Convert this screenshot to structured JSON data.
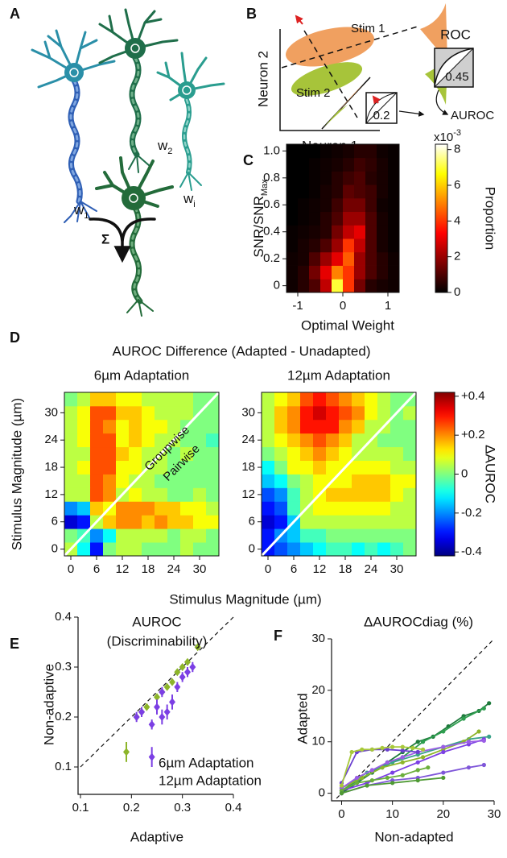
{
  "panel_labels": [
    "A",
    "B",
    "C",
    "D",
    "E",
    "F"
  ],
  "panel_A": {
    "weights": [
      {
        "text": "w",
        "sub": "1"
      },
      {
        "text": "w",
        "sub": "2"
      },
      {
        "text": "w",
        "sub": "i"
      }
    ],
    "sum": "Σ"
  },
  "panel_B": {
    "stim_1": "Stim 1",
    "stim_2": "Stim 2",
    "ylabel": "Neuron 2",
    "xlabel": "Neuron 1",
    "roc_title": "ROC",
    "roc_value": 0.45,
    "projection_value": 0.2,
    "auroc": "AUROC"
  },
  "panel_D": {
    "title": "AUROC Difference (Adapted - Unadapted)",
    "xlabel": "Stimulus Magnitude (µm)",
    "groupwise": "Groupwise",
    "pairwise": "Pairwise"
  },
  "chart_data": [
    {
      "type": "heatmap",
      "ylabel": {
        "text": "SNR/SNR",
        "sub": "Max"
      },
      "xlabel": "Optimal Weight",
      "x": [
        -1.125,
        -0.875,
        -0.625,
        -0.375,
        -0.125,
        0.125,
        0.375,
        0.625,
        0.875,
        1.125
      ],
      "y": [
        0,
        0.1,
        0.2,
        0.3,
        0.4,
        0.5,
        0.6,
        0.7,
        0.8,
        0.9,
        1
      ],
      "values": [
        [
          0.2,
          0.5,
          1,
          2.5,
          7,
          4,
          1.5,
          0.5,
          0.3,
          0.2
        ],
        [
          0.2,
          0.5,
          1.5,
          3,
          5,
          4,
          2,
          1,
          0.5,
          0.2
        ],
        [
          0.2,
          0.3,
          1,
          2,
          3,
          4.5,
          2,
          1,
          0.5,
          0.2
        ],
        [
          0.1,
          0.3,
          0.5,
          1,
          2,
          4,
          2.5,
          1,
          0.3,
          0.1
        ],
        [
          0.1,
          0.2,
          0.3,
          0.5,
          1.5,
          2.5,
          3,
          1,
          0.3,
          0.1
        ],
        [
          0,
          0.1,
          0.2,
          0.5,
          1,
          2,
          2,
          1,
          0.3,
          0.1
        ],
        [
          0,
          0.1,
          0.2,
          0.3,
          0.8,
          1.5,
          1.5,
          0.8,
          0.2,
          0.1
        ],
        [
          0,
          0,
          0.1,
          0.3,
          0.5,
          1.2,
          1,
          0.8,
          0.3,
          0.1
        ],
        [
          0,
          0,
          0.1,
          0.2,
          0.5,
          0.8,
          1,
          0.5,
          0.3,
          0.1
        ],
        [
          0,
          0,
          0.1,
          0.2,
          0.3,
          0.5,
          0.8,
          0.6,
          0.3,
          0.1
        ],
        [
          0,
          0,
          0,
          0.1,
          0.2,
          0.3,
          0.5,
          0.5,
          0.2,
          0.1
        ]
      ],
      "xlim": [
        -1.25,
        1.25
      ],
      "ylim": [
        -0.05,
        1.05
      ],
      "xticks": [
        -1,
        0,
        1
      ],
      "yticks": [
        0,
        0.2,
        0.4,
        0.6,
        0.8,
        {
          "value": 1,
          "label": "1.0"
        }
      ],
      "colormap": "hot",
      "clim": [
        0,
        8.3
      ],
      "cticks": [
        0,
        2,
        4,
        6,
        8
      ],
      "colorbar_label": "Proportion",
      "colorbar_scale": {
        "text": "x10",
        "sup": "-3"
      }
    },
    {
      "type": "heatmap",
      "title": "6µm Adaptation",
      "ylabel": "Stimulus Magnitude (µm)",
      "x": [
        0,
        3,
        6,
        9,
        12,
        15,
        18,
        21,
        24,
        27,
        30,
        33
      ],
      "y": [
        0,
        3,
        6,
        9,
        12,
        15,
        18,
        21,
        24,
        27,
        30,
        33
      ],
      "values": [
        [
          0.05,
          -0.1,
          -0.3,
          0,
          0.05,
          0.05,
          0,
          0,
          0,
          0.05,
          0,
          0
        ],
        [
          0,
          -0.05,
          -0.2,
          -0.1,
          0.05,
          0.05,
          0.05,
          0.05,
          0,
          0.05,
          0.05,
          0
        ],
        [
          -0.35,
          -0.3,
          0.05,
          0.15,
          0.2,
          0.2,
          0.15,
          0.2,
          0.15,
          0.15,
          0.1,
          0.1
        ],
        [
          -0.2,
          -0.15,
          0.15,
          0.1,
          0.2,
          0.2,
          0.2,
          0.15,
          0.15,
          0.1,
          0.1,
          0.05
        ],
        [
          0.05,
          0.05,
          0.25,
          0.2,
          0.05,
          0.1,
          0.05,
          0.05,
          0,
          0,
          0.05,
          0
        ],
        [
          0.05,
          0.05,
          0.25,
          0.2,
          0.1,
          0.05,
          0.05,
          0,
          0,
          0,
          0,
          0
        ],
        [
          0.05,
          0.1,
          0.25,
          0.25,
          0.1,
          0.1,
          0.05,
          0.05,
          0,
          0,
          0,
          0
        ],
        [
          0.05,
          0.05,
          0.25,
          0.25,
          0.15,
          0.1,
          0.05,
          0.05,
          0,
          0.05,
          0,
          0
        ],
        [
          0.05,
          0.1,
          0.25,
          0.25,
          0.1,
          0.15,
          0.1,
          0.05,
          0.05,
          0,
          0,
          -0.05
        ],
        [
          0.05,
          0.1,
          0.25,
          0.2,
          0.1,
          0.15,
          0.1,
          0.1,
          0.05,
          0,
          0,
          0
        ],
        [
          0.05,
          0.1,
          0.25,
          0.25,
          0.15,
          0.15,
          0.1,
          0.05,
          0.05,
          0.05,
          0,
          0
        ],
        [
          0,
          0.05,
          0.15,
          0.15,
          0.1,
          0.1,
          0.05,
          0.05,
          0.05,
          0.05,
          0,
          0
        ]
      ],
      "xlim": [
        -1.5,
        34.5
      ],
      "ylim": [
        -1.5,
        34.5
      ],
      "xticks": [
        0,
        6,
        12,
        18,
        24,
        30
      ],
      "yticks": [
        0,
        6,
        12,
        18,
        24,
        30
      ],
      "colormap": "jet",
      "clim": [
        -0.42,
        0.42
      ],
      "diagonal": true
    },
    {
      "type": "heatmap",
      "title": "12µm Adaptation",
      "x": [
        0,
        3,
        6,
        9,
        12,
        15,
        18,
        21,
        24,
        27,
        30,
        33
      ],
      "y": [
        0,
        3,
        6,
        9,
        12,
        15,
        18,
        21,
        24,
        27,
        30,
        33
      ],
      "values": [
        [
          -0.3,
          -0.25,
          -0.2,
          -0.15,
          -0.1,
          -0.05,
          -0.05,
          -0.1,
          -0.05,
          -0.1,
          -0.05,
          0
        ],
        [
          -0.3,
          -0.2,
          -0.15,
          -0.05,
          -0.05,
          0,
          0,
          0,
          0,
          0,
          0,
          0
        ],
        [
          -0.35,
          -0.3,
          -0.15,
          0.05,
          0.05,
          0.05,
          0.05,
          0.05,
          0.05,
          0.05,
          0.05,
          0.05
        ],
        [
          -0.3,
          -0.25,
          -0.05,
          0.05,
          0.1,
          0.1,
          0.1,
          0.1,
          0.1,
          0.1,
          0.05,
          0.05
        ],
        [
          -0.25,
          -0.2,
          -0.05,
          0.05,
          0.1,
          0.15,
          0.15,
          0.15,
          0.15,
          0.15,
          0.1,
          0.05
        ],
        [
          -0.15,
          -0.1,
          0,
          0.05,
          0.1,
          0.1,
          0.1,
          0.15,
          0.15,
          0.15,
          0.1,
          0.1
        ],
        [
          -0.1,
          0,
          0.1,
          0.1,
          0.15,
          0.1,
          0.1,
          0.1,
          0.1,
          0.1,
          0.05,
          0.05
        ],
        [
          0,
          0.05,
          0.1,
          0.15,
          0.2,
          0.15,
          0.1,
          0.05,
          0.05,
          0.05,
          0.05,
          0
        ],
        [
          0.05,
          0.1,
          0.15,
          0.2,
          0.25,
          0.2,
          0.15,
          0.05,
          0.05,
          0,
          0,
          0
        ],
        [
          0.05,
          0.15,
          0.2,
          0.3,
          0.3,
          0.3,
          0.2,
          0.15,
          0.05,
          0.05,
          0,
          0
        ],
        [
          0.05,
          0.15,
          0.2,
          0.3,
          0.35,
          0.3,
          0.25,
          0.2,
          0.1,
          0.05,
          0,
          0.05
        ],
        [
          0.05,
          0.1,
          0.15,
          0.25,
          0.3,
          0.25,
          0.2,
          0.15,
          0.1,
          0.05,
          0,
          0
        ]
      ],
      "xlim": [
        -1.5,
        34.5
      ],
      "ylim": [
        -1.5,
        34.5
      ],
      "xticks": [
        0,
        6,
        12,
        18,
        24,
        30
      ],
      "yticks": [
        0,
        6,
        12,
        18,
        24,
        30
      ],
      "colormap": "jet",
      "clim": [
        -0.42,
        0.42
      ],
      "diagonal": true,
      "cticks": [
        {
          "value": 0.4,
          "label": "+0.4"
        },
        {
          "value": 0.2,
          "label": "+0.2"
        },
        0,
        -0.2,
        -0.4
      ],
      "colorbar_label": "ΔAUROC"
    },
    {
      "type": "errorbar",
      "title": "AUROC",
      "subtitle": "(Discriminability)",
      "xlabel": "Adaptive",
      "ylabel": "Non-adaptive",
      "xlim": [
        0.1,
        0.4
      ],
      "ylim": [
        0.05,
        0.4
      ],
      "xticks": [
        0.1,
        0.2,
        0.3,
        0.4
      ],
      "yticks": [
        0.1,
        0.2,
        0.3,
        0.4
      ],
      "identity_line": true,
      "series": [
        {
          "name": "6µm Adaptation",
          "color": "#8db52a",
          "x": [
            0.19,
            0.21,
            0.22,
            0.23,
            0.25,
            0.26,
            0.27,
            0.28,
            0.29,
            0.3,
            0.31,
            0.33
          ],
          "values": [
            0.13,
            0.2,
            0.21,
            0.22,
            0.24,
            0.25,
            0.26,
            0.27,
            0.29,
            0.3,
            0.31,
            0.34
          ],
          "errors": [
            0.02,
            0.005,
            0.005,
            0.005,
            0.005,
            0.005,
            0.005,
            0.005,
            0.005,
            0.005,
            0.005,
            0.005
          ]
        },
        {
          "name": "12µm Adaptation",
          "color": "#7b3fe4",
          "x": [
            0.21,
            0.22,
            0.24,
            0.24,
            0.25,
            0.26,
            0.26,
            0.27,
            0.28,
            0.29,
            0.3,
            0.31,
            0.32
          ],
          "values": [
            0.2,
            0.21,
            0.12,
            0.185,
            0.22,
            0.2,
            0.25,
            0.21,
            0.23,
            0.26,
            0.28,
            0.29,
            0.3
          ],
          "errors": [
            0.01,
            0.01,
            0.02,
            0.01,
            0.015,
            0.015,
            0.01,
            0.015,
            0.015,
            0.01,
            0.01,
            0.01,
            0.01
          ]
        }
      ]
    },
    {
      "type": "line",
      "title": "ΔAUROCdiag (%)",
      "xlabel": "Non-adapted",
      "ylabel": "Adapted",
      "xlim": [
        -1.5,
        30
      ],
      "ylim": [
        -1,
        30
      ],
      "xticks": [
        0,
        10,
        20,
        30
      ],
      "yticks": [
        0,
        10,
        20,
        30
      ],
      "identity_line": true,
      "series": [
        {
          "color": "#1e7a3c",
          "x": [
            0,
            3,
            6,
            9,
            12,
            15,
            18,
            21,
            24,
            27,
            29
          ],
          "values": [
            0,
            2,
            4,
            6,
            8,
            10,
            11,
            13,
            15,
            16,
            17.5
          ]
        },
        {
          "color": "#2e9e4f",
          "x": [
            0,
            4,
            8,
            12,
            16,
            20,
            24,
            28
          ],
          "values": [
            0.5,
            3,
            5,
            7,
            10,
            12,
            14.5,
            16.5
          ]
        },
        {
          "color": "#3aa38a",
          "x": [
            0,
            5,
            10,
            15,
            20,
            25,
            29
          ],
          "values": [
            1,
            4,
            6,
            7.5,
            9,
            10.5,
            11
          ]
        },
        {
          "color": "#8db52a",
          "x": [
            0,
            4,
            8,
            12,
            16,
            20,
            24,
            27
          ],
          "values": [
            1,
            3,
            5,
            6,
            7,
            8.5,
            10,
            12
          ]
        },
        {
          "color": "#7b3fe4",
          "x": [
            0,
            5,
            10,
            15,
            20,
            25,
            28
          ],
          "values": [
            0.5,
            2,
            4,
            6,
            8,
            9.5,
            10.5
          ]
        },
        {
          "color": "#9b5de5",
          "x": [
            0,
            3,
            6,
            9,
            12,
            15,
            20,
            25,
            28
          ],
          "values": [
            1,
            3,
            4.5,
            6,
            7,
            8,
            9,
            10,
            10.2
          ]
        },
        {
          "color": "#6a3fd0",
          "x": [
            0,
            3,
            6,
            9,
            12,
            15
          ],
          "values": [
            2,
            8,
            8.5,
            8.5,
            8.3,
            8
          ]
        },
        {
          "color": "#a8c93a",
          "x": [
            0,
            2,
            4,
            6,
            8,
            10,
            12,
            14,
            16
          ],
          "values": [
            1.5,
            8,
            8.5,
            8.5,
            8.8,
            9,
            9,
            8.8,
            8.5
          ]
        },
        {
          "color": "#7f56d9",
          "x": [
            0,
            5,
            10,
            15,
            20,
            25,
            28
          ],
          "values": [
            0,
            1.5,
            2.5,
            3,
            4,
            5,
            5.5
          ]
        },
        {
          "color": "#6aae3c",
          "x": [
            0,
            3,
            6,
            9,
            12,
            15,
            17
          ],
          "values": [
            0.5,
            2,
            2.5,
            3,
            3.5,
            4.5,
            5
          ]
        },
        {
          "color": "#4f9a34",
          "x": [
            0,
            5,
            10,
            15,
            20
          ],
          "values": [
            0,
            1.5,
            2,
            2.5,
            3
          ]
        }
      ]
    }
  ]
}
